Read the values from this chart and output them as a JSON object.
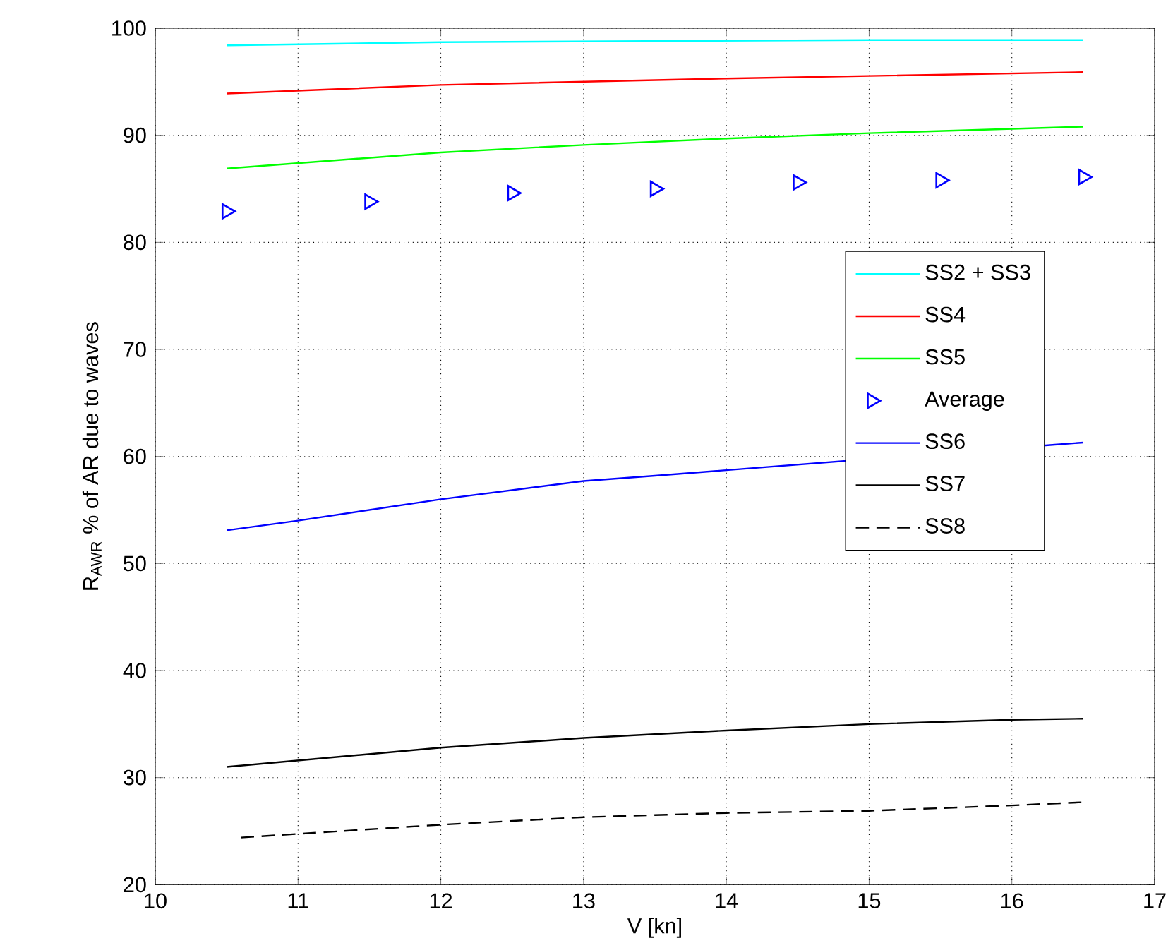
{
  "chart_data": {
    "type": "line",
    "xlabel": "V [kn]",
    "ylabel": "R$_{AWR}$ % of AR due to waves",
    "xlim": [
      10,
      17
    ],
    "ylim": [
      20,
      100
    ],
    "xticks": [
      10,
      11,
      12,
      13,
      14,
      15,
      16,
      17
    ],
    "yticks": [
      20,
      30,
      40,
      50,
      60,
      70,
      80,
      90,
      100
    ],
    "grid": true,
    "legend": "right",
    "marker": "none",
    "line_style": "solid",
    "series": [
      {
        "name": "SS2 + SS3",
        "color": "#00ffff",
        "x": [
          10.5,
          12,
          15,
          16.5
        ],
        "values": [
          98.4,
          98.7,
          98.9,
          98.9
        ]
      },
      {
        "name": "SS4",
        "color": "#ff0000",
        "x": [
          10.5,
          12,
          14,
          16.5
        ],
        "values": [
          93.9,
          94.7,
          95.3,
          95.9
        ]
      },
      {
        "name": "SS5",
        "color": "#00ff00",
        "x": [
          10.5,
          12,
          13,
          14,
          15,
          16.5
        ],
        "values": [
          86.9,
          88.4,
          89.1,
          89.7,
          90.2,
          90.8
        ]
      },
      {
        "name": "Average",
        "type": "scatter",
        "marker": "triangle",
        "color": "#0000ff",
        "x": [
          10.5,
          11.5,
          12.5,
          13.5,
          14.5,
          15.5,
          16.5
        ],
        "values": [
          82.9,
          83.8,
          84.6,
          85.0,
          85.6,
          85.8,
          86.1
        ]
      },
      {
        "name": "SS6",
        "color": "#0000ff",
        "x": [
          10.5,
          11,
          12,
          13,
          13.5,
          16.3,
          16.5
        ],
        "values": [
          53.1,
          54.0,
          56.0,
          57.7,
          58.2,
          61.1,
          61.3
        ]
      },
      {
        "name": "SS7",
        "color": "#000000",
        "x": [
          10.5,
          12,
          13,
          14,
          15,
          16,
          16.5
        ],
        "values": [
          31.0,
          32.8,
          33.7,
          34.4,
          35.0,
          35.4,
          35.5
        ]
      },
      {
        "name": "SS8",
        "color": "#000000",
        "line_style": "dashed",
        "x": [
          10.6,
          12,
          13,
          14,
          15,
          16,
          16.5
        ],
        "values": [
          24.4,
          25.6,
          26.3,
          26.7,
          26.9,
          27.4,
          27.7
        ]
      }
    ]
  }
}
